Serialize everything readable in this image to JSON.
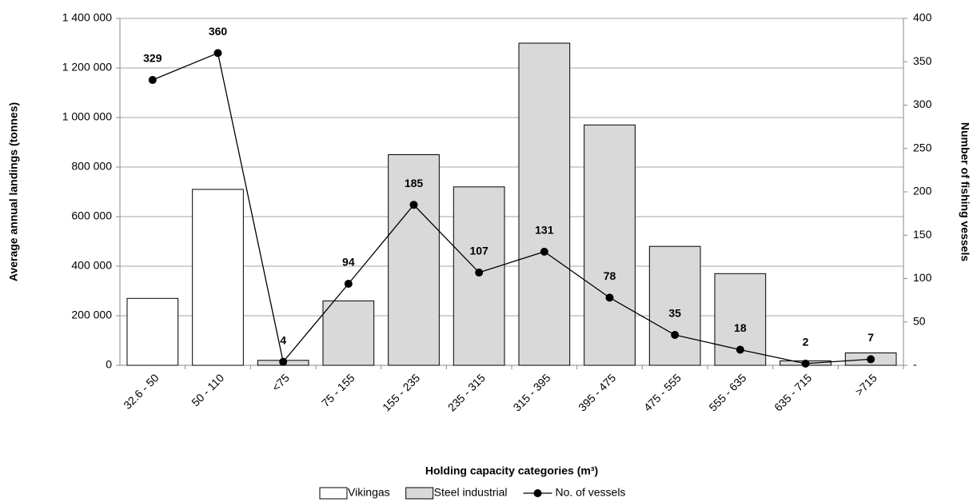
{
  "chart_data": {
    "type": "bar",
    "xlabel": "Holding capacity categories (m³)",
    "ylabel": "Average annual landings (tonnes)",
    "y2label": "Number of fishing vessels",
    "categories": [
      "32.6 - 50",
      "50 - 110",
      "<75",
      "75 - 155",
      "155 - 235",
      "235 - 315",
      "315 - 395",
      "395 - 475",
      "475 - 555",
      "555 - 635",
      "635 - 715",
      ">715"
    ],
    "series": [
      {
        "name": "Vikingas",
        "type": "bar",
        "color": "#ffffff",
        "values": [
          270000,
          710000,
          null,
          null,
          null,
          null,
          null,
          null,
          null,
          null,
          null,
          null
        ]
      },
      {
        "name": "Steel industrial",
        "type": "bar",
        "color": "#d9d9d9",
        "values": [
          null,
          null,
          20000,
          260000,
          850000,
          720000,
          1300000,
          970000,
          480000,
          370000,
          18000,
          50000
        ]
      },
      {
        "name": "No. of vessels",
        "type": "line",
        "axis": "y2",
        "color": "#000000",
        "values": [
          329,
          360,
          4,
          94,
          185,
          107,
          131,
          78,
          35,
          18,
          2,
          7
        ]
      }
    ],
    "ylim": [
      0,
      1400000
    ],
    "yticks": [
      0,
      {
        "value": 200000,
        "label": "200 000"
      },
      {
        "value": 400000,
        "label": "400 000"
      },
      {
        "value": 600000,
        "label": "600 000"
      },
      {
        "value": 800000,
        "label": "800 000"
      },
      {
        "value": 1000000,
        "label": "1 000 000"
      },
      {
        "value": 1200000,
        "label": "1 200 000"
      },
      {
        "value": 1400000,
        "label": "1 400 000"
      }
    ],
    "y2lim": [
      0,
      400
    ],
    "y2ticks": [
      {
        "value": 0,
        "label": "-"
      },
      50,
      100,
      150,
      200,
      250,
      300,
      350,
      400
    ],
    "grid": true,
    "legend": "bottom"
  }
}
